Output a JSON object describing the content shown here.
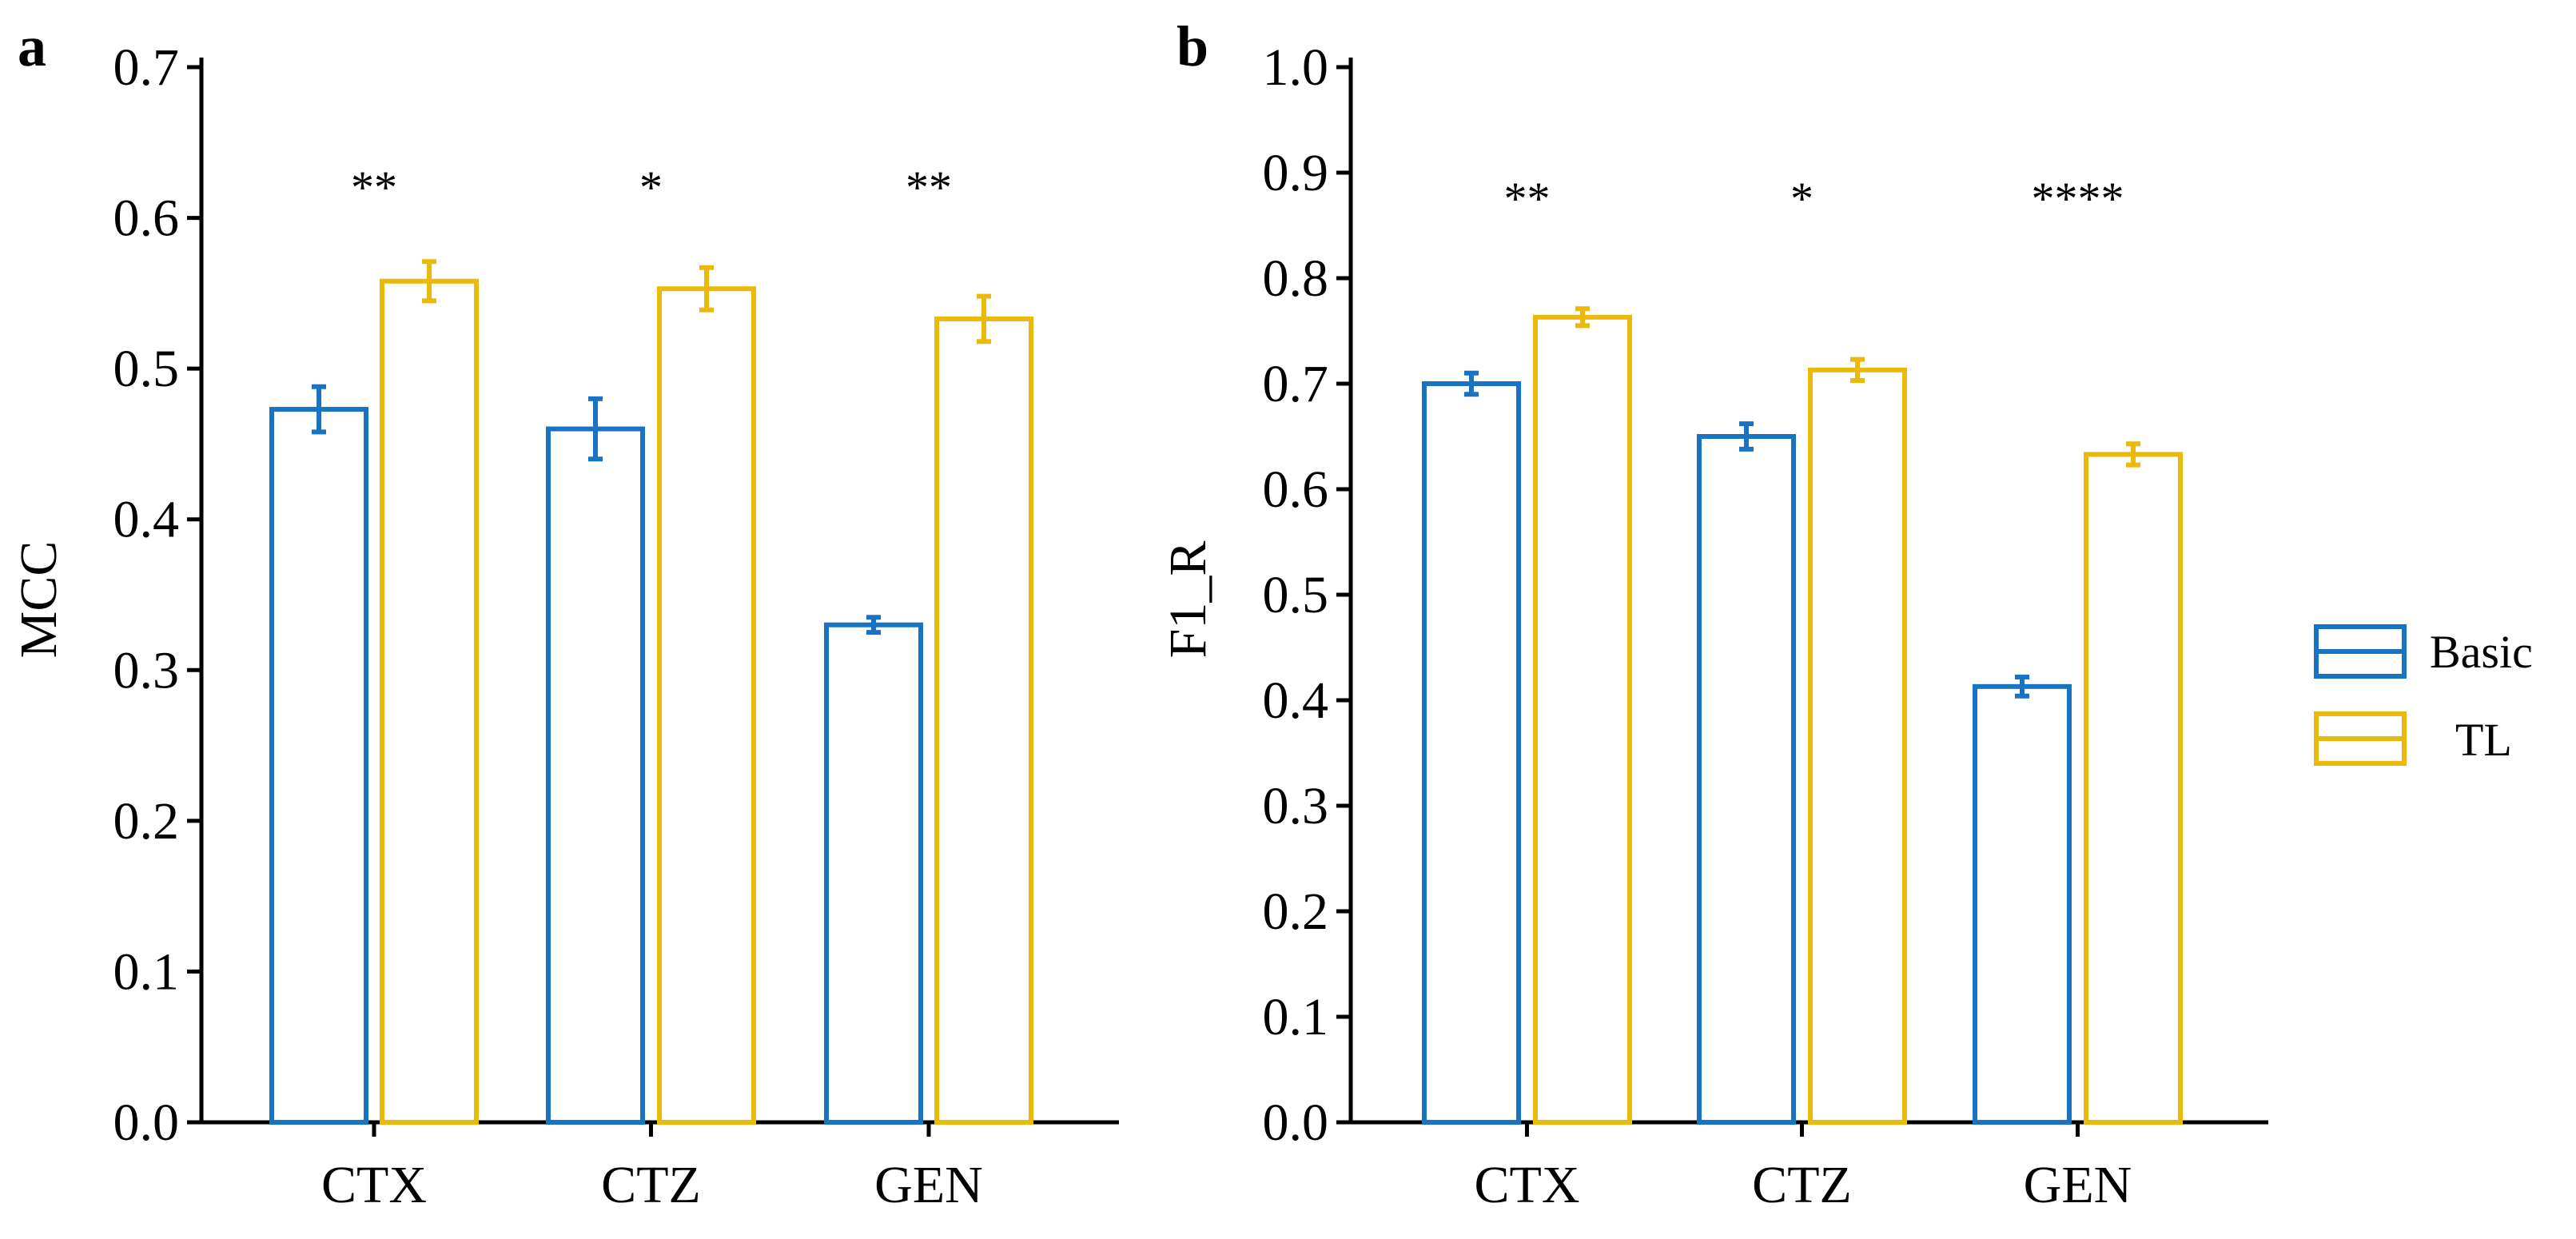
{
  "chart_data": [
    {
      "type": "bar",
      "panel": "a",
      "ylabel": "MCC",
      "xlabel": "",
      "ylim": [
        0,
        0.7
      ],
      "yticks": [
        "0.0",
        "0.1",
        "0.2",
        "0.3",
        "0.4",
        "0.5",
        "0.6",
        "0.7"
      ],
      "categories": [
        "CTX",
        "CTZ",
        "GEN"
      ],
      "series": [
        {
          "name": "Basic",
          "values": [
            0.473,
            0.46,
            0.33
          ],
          "errors": [
            0.015,
            0.02,
            0.005
          ]
        },
        {
          "name": "TL",
          "values": [
            0.558,
            0.553,
            0.533
          ],
          "errors": [
            0.013,
            0.014,
            0.015
          ]
        }
      ],
      "significance": [
        "**",
        "*",
        "**"
      ]
    },
    {
      "type": "bar",
      "panel": "b",
      "ylabel": "F1_R",
      "xlabel": "",
      "ylim": [
        0,
        1.0
      ],
      "yticks": [
        "0.0",
        "0.1",
        "0.2",
        "0.3",
        "0.4",
        "0.5",
        "0.6",
        "0.7",
        "0.8",
        "0.9",
        "1.0"
      ],
      "categories": [
        "CTX",
        "CTZ",
        "GEN"
      ],
      "series": [
        {
          "name": "Basic",
          "values": [
            0.7,
            0.65,
            0.413
          ],
          "errors": [
            0.01,
            0.012,
            0.009
          ]
        },
        {
          "name": "TL",
          "values": [
            0.763,
            0.713,
            0.633
          ],
          "errors": [
            0.008,
            0.01,
            0.01
          ]
        }
      ],
      "significance": [
        "**",
        "*",
        "****"
      ]
    }
  ],
  "legend": [
    {
      "name": "Basic",
      "color": "#1873c3"
    },
    {
      "name": "TL",
      "color": "#ebb90a"
    }
  ],
  "colors": {
    "Basic": "#1873c3",
    "TL": "#ebb90a",
    "axis": "#000000"
  }
}
